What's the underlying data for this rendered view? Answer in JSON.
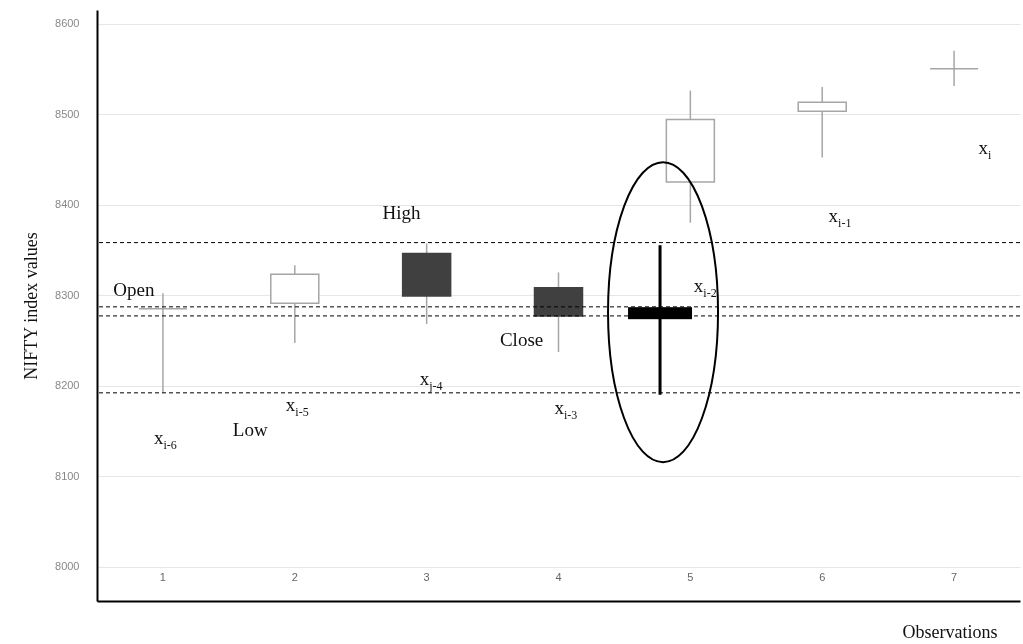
{
  "chart_data": {
    "type": "candlestick",
    "xlabel": "Observations",
    "ylabel": "NIFTY index values",
    "categories": [
      "1",
      "2",
      "3",
      "4",
      "5",
      "6",
      "7"
    ],
    "ohlc": [
      [
        8285,
        8302,
        8192,
        8285
      ],
      [
        8291,
        8333,
        8247,
        8323
      ],
      [
        8346,
        8357,
        8268,
        8299
      ],
      [
        8308,
        8325,
        8237,
        8277
      ],
      [
        8425,
        8526,
        8380,
        8494
      ],
      [
        8503,
        8530,
        8452,
        8513
      ],
      [
        8550,
        8570,
        8531,
        8550
      ]
    ],
    "ylim": [
      7962,
      8615
    ],
    "yticks": [
      8000,
      8100,
      8200,
      8300,
      8400,
      8500,
      8600
    ],
    "grid": "y",
    "ref_lines": [
      {
        "axis": "y",
        "value": 8358,
        "line_style": "dashed"
      },
      {
        "axis": "y",
        "value": 8287,
        "line_style": "dashed"
      },
      {
        "axis": "y",
        "value": 8277,
        "line_style": "dashed"
      },
      {
        "axis": "y",
        "value": 8192,
        "line_style": "dashed"
      }
    ],
    "annotations": [
      "Open",
      "High",
      "Close",
      "Low",
      "x$_{i-6}$",
      "x$_{i-5}$",
      "x$_{j-4}$",
      "x$_{i-3}$",
      "x$_{i-2}$",
      "x$_{i-1}$",
      "x$_{i}$"
    ]
  }
}
